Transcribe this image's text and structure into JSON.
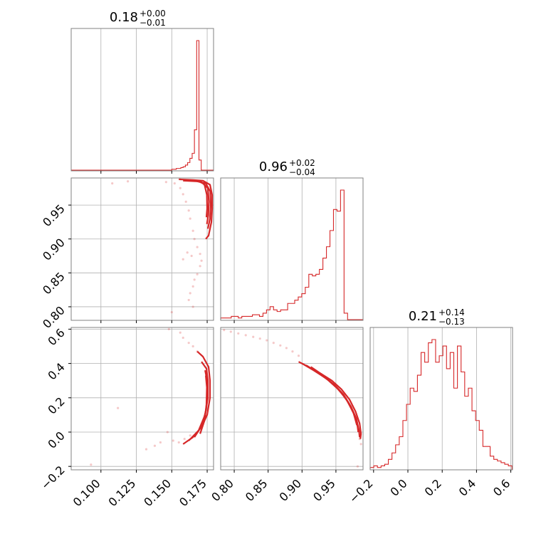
{
  "chart_data": [
    {
      "type": "histogram",
      "panel": "hist-p1",
      "title": {
        "value": "0.18",
        "plus": "+0.00",
        "minus": "−0.01"
      },
      "xlim": [
        0.079,
        0.1795
      ],
      "grid": true,
      "bins": {
        "start": 0.15,
        "width": 0.0016,
        "counts": [
          1,
          1,
          2,
          2,
          3,
          4,
          6,
          9,
          14,
          20,
          48,
          154,
          12
        ]
      }
    },
    {
      "type": "scatter",
      "panel": "scatter-p1-p2",
      "xlim": [
        0.079,
        0.1795
      ],
      "ylim": [
        0.78,
        0.99
      ],
      "grid": true,
      "x_ticks": [
        "0.100",
        "0.125",
        "0.150",
        "0.175"
      ],
      "y_ticks": [
        "0.80",
        "0.85",
        "0.90",
        "0.95"
      ],
      "points": [
        [
          0.108,
          0.982
        ],
        [
          0.119,
          0.985
        ],
        [
          0.146,
          0.984
        ],
        [
          0.152,
          0.982
        ],
        [
          0.156,
          0.975
        ],
        [
          0.158,
          0.966
        ],
        [
          0.16,
          0.955
        ],
        [
          0.162,
          0.942
        ],
        [
          0.163,
          0.93
        ],
        [
          0.165,
          0.912
        ],
        [
          0.166,
          0.9
        ],
        [
          0.168,
          0.888
        ],
        [
          0.17,
          0.878
        ],
        [
          0.171,
          0.868
        ],
        [
          0.17,
          0.86
        ],
        [
          0.168,
          0.848
        ],
        [
          0.166,
          0.84
        ],
        [
          0.165,
          0.83
        ],
        [
          0.163,
          0.82
        ],
        [
          0.162,
          0.81
        ],
        [
          0.165,
          0.8
        ],
        [
          0.15,
          0.792
        ],
        [
          0.158,
          0.87
        ],
        [
          0.161,
          0.88
        ],
        [
          0.164,
          0.875
        ]
      ],
      "contours": [
        [
          [
            0.155,
            0.988
          ],
          [
            0.165,
            0.987
          ],
          [
            0.172,
            0.986
          ],
          [
            0.177,
            0.98
          ],
          [
            0.1785,
            0.965
          ],
          [
            0.1785,
            0.945
          ],
          [
            0.178,
            0.925
          ],
          [
            0.176,
            0.905
          ],
          [
            0.174,
            0.9
          ]
        ],
        [
          [
            0.158,
            0.986
          ],
          [
            0.168,
            0.985
          ],
          [
            0.174,
            0.982
          ],
          [
            0.1772,
            0.97
          ],
          [
            0.1775,
            0.95
          ],
          [
            0.177,
            0.93
          ],
          [
            0.1755,
            0.915
          ]
        ],
        [
          [
            0.163,
            0.987
          ],
          [
            0.171,
            0.984
          ],
          [
            0.1755,
            0.975
          ],
          [
            0.1762,
            0.955
          ],
          [
            0.1758,
            0.935
          ],
          [
            0.1748,
            0.922
          ]
        ],
        [
          [
            0.168,
            0.986
          ],
          [
            0.173,
            0.981
          ],
          [
            0.1748,
            0.965
          ],
          [
            0.175,
            0.945
          ],
          [
            0.1745,
            0.932
          ]
        ]
      ]
    },
    {
      "type": "histogram",
      "panel": "hist-p2",
      "title": {
        "value": "0.96",
        "plus": "+0.02",
        "minus": "−0.04"
      },
      "xlim": [
        0.78,
        0.99
      ],
      "grid": true,
      "bins": {
        "start": 0.78,
        "width": 0.0052,
        "counts": [
          1,
          1,
          1,
          2,
          2,
          1,
          2,
          2,
          2,
          3,
          3,
          2,
          4,
          6,
          8,
          6,
          5,
          6,
          6,
          10,
          10,
          12,
          14,
          16,
          20,
          28,
          27,
          28,
          31,
          38,
          45,
          55,
          68,
          67,
          80,
          4
        ]
      }
    },
    {
      "type": "scatter",
      "panel": "scatter-p1-p3",
      "xlim": [
        0.079,
        0.1795
      ],
      "ylim": [
        -0.22,
        0.61
      ],
      "grid": true,
      "x_ticks": [
        "0.100",
        "0.125",
        "0.150",
        "0.175"
      ],
      "y_ticks": [
        "−0.2",
        "0.0",
        "0.2",
        "0.4",
        "0.6"
      ],
      "points": [
        [
          0.093,
          -0.19
        ],
        [
          0.112,
          0.14
        ],
        [
          0.148,
          0.6
        ],
        [
          0.156,
          0.58
        ],
        [
          0.158,
          0.55
        ],
        [
          0.162,
          0.52
        ],
        [
          0.165,
          0.5
        ],
        [
          0.168,
          0.47
        ],
        [
          0.132,
          -0.1
        ],
        [
          0.138,
          -0.08
        ],
        [
          0.142,
          -0.06
        ],
        [
          0.147,
          0.0
        ],
        [
          0.151,
          -0.05
        ],
        [
          0.155,
          -0.06
        ],
        [
          0.159,
          -0.04
        ],
        [
          0.163,
          -0.02
        ]
      ],
      "contours": [
        [
          [
            0.158,
            -0.07
          ],
          [
            0.165,
            -0.03
          ],
          [
            0.171,
            0.03
          ],
          [
            0.175,
            0.1
          ],
          [
            0.177,
            0.2
          ],
          [
            0.177,
            0.3
          ],
          [
            0.176,
            0.38
          ],
          [
            0.172,
            0.44
          ],
          [
            0.168,
            0.47
          ]
        ],
        [
          [
            0.162,
            -0.05
          ],
          [
            0.169,
            0.01
          ],
          [
            0.1735,
            0.1
          ],
          [
            0.1755,
            0.2
          ],
          [
            0.1755,
            0.3
          ],
          [
            0.1745,
            0.37
          ],
          [
            0.171,
            0.41
          ]
        ],
        [
          [
            0.166,
            -0.03
          ],
          [
            0.1715,
            0.04
          ],
          [
            0.1742,
            0.13
          ],
          [
            0.1752,
            0.22
          ],
          [
            0.1748,
            0.31
          ],
          [
            0.1735,
            0.36
          ]
        ],
        [
          [
            0.17,
            -0.01
          ],
          [
            0.1732,
            0.07
          ],
          [
            0.1745,
            0.16
          ],
          [
            0.1748,
            0.26
          ],
          [
            0.174,
            0.33
          ]
        ]
      ]
    },
    {
      "type": "scatter",
      "panel": "scatter-p2-p3",
      "xlim": [
        0.78,
        0.99
      ],
      "ylim": [
        -0.22,
        0.61
      ],
      "grid": true,
      "x_ticks": [
        "0.80",
        "0.85",
        "0.90",
        "0.95"
      ],
      "y_ticks": [],
      "points": [
        [
          0.785,
          0.595
        ],
        [
          0.795,
          0.585
        ],
        [
          0.806,
          0.575
        ],
        [
          0.817,
          0.565
        ],
        [
          0.828,
          0.555
        ],
        [
          0.838,
          0.545
        ],
        [
          0.848,
          0.535
        ],
        [
          0.858,
          0.52
        ],
        [
          0.868,
          0.505
        ],
        [
          0.877,
          0.49
        ],
        [
          0.886,
          0.47
        ],
        [
          0.895,
          0.445
        ],
        [
          0.985,
          -0.04
        ],
        [
          0.987,
          -0.07
        ],
        [
          0.982,
          -0.2
        ]
      ],
      "contours": [
        [
          [
            0.895,
            0.41
          ],
          [
            0.912,
            0.375
          ],
          [
            0.928,
            0.34
          ],
          [
            0.944,
            0.3
          ],
          [
            0.958,
            0.25
          ],
          [
            0.97,
            0.19
          ],
          [
            0.979,
            0.12
          ],
          [
            0.985,
            0.05
          ],
          [
            0.987,
            -0.01
          ],
          [
            0.986,
            -0.04
          ]
        ],
        [
          [
            0.9,
            0.4
          ],
          [
            0.917,
            0.36
          ],
          [
            0.933,
            0.32
          ],
          [
            0.948,
            0.275
          ],
          [
            0.961,
            0.22
          ],
          [
            0.972,
            0.15
          ],
          [
            0.98,
            0.08
          ],
          [
            0.984,
            0.01
          ],
          [
            0.985,
            -0.03
          ]
        ],
        [
          [
            0.906,
            0.39
          ],
          [
            0.922,
            0.35
          ],
          [
            0.938,
            0.305
          ],
          [
            0.952,
            0.255
          ],
          [
            0.964,
            0.2
          ],
          [
            0.974,
            0.13
          ],
          [
            0.981,
            0.06
          ],
          [
            0.983,
            0.0
          ]
        ],
        [
          [
            0.913,
            0.38
          ],
          [
            0.928,
            0.34
          ],
          [
            0.943,
            0.29
          ],
          [
            0.956,
            0.24
          ],
          [
            0.967,
            0.18
          ],
          [
            0.976,
            0.11
          ],
          [
            0.981,
            0.04
          ]
        ]
      ]
    },
    {
      "type": "histogram",
      "panel": "hist-p3",
      "title": {
        "value": "0.21",
        "plus": "+0.14",
        "minus": "−0.13"
      },
      "xlim": [
        -0.22,
        0.61
      ],
      "x_ticks": [
        "−0.2",
        "0.0",
        "0.2",
        "0.4",
        "0.6"
      ],
      "grid": true,
      "bins": {
        "start": -0.22,
        "width": 0.0212,
        "counts": [
          1,
          2,
          1,
          2,
          3,
          6,
          10,
          15,
          20,
          30,
          40,
          50,
          48,
          58,
          72,
          66,
          78,
          80,
          66,
          70,
          76,
          62,
          72,
          50,
          76,
          60,
          45,
          50,
          36,
          30,
          24,
          14,
          14,
          8,
          6,
          5,
          4,
          3,
          2
        ]
      }
    }
  ],
  "colors": {
    "series": "#d62728",
    "grid": "#b0b0b0",
    "axes": "#808080"
  }
}
